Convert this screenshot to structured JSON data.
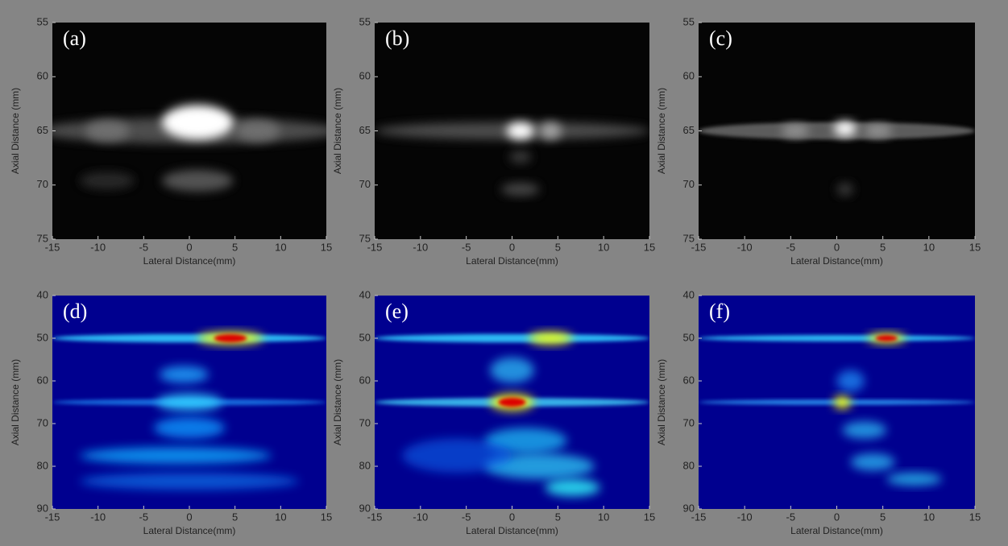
{
  "panels": [
    {
      "label": "(a)",
      "xlabel": "Lateral Distance(mm)",
      "ylabel": "Axial Distance (mm)",
      "xlim": [
        -15,
        15
      ],
      "ylim": [
        75,
        55
      ],
      "xticks": [
        -15,
        -10,
        -5,
        0,
        5,
        10,
        15
      ],
      "yticks": [
        55,
        60,
        65,
        70,
        75
      ]
    },
    {
      "label": "(b)",
      "xlabel": "Lateral Distance(mm)",
      "ylabel": "Axial Distance (mm)",
      "xlim": [
        -15,
        15
      ],
      "ylim": [
        75,
        55
      ],
      "xticks": [
        -15,
        -10,
        -5,
        0,
        5,
        10,
        15
      ],
      "yticks": [
        55,
        60,
        65,
        70,
        75
      ]
    },
    {
      "label": "(c)",
      "xlabel": "Lateral Distance(mm)",
      "ylabel": "Axial Distance (mm)",
      "xlim": [
        -15,
        15
      ],
      "ylim": [
        75,
        55
      ],
      "xticks": [
        -15,
        -10,
        -5,
        0,
        5,
        10,
        15
      ],
      "yticks": [
        55,
        60,
        65,
        70,
        75
      ]
    },
    {
      "label": "(d)",
      "xlabel": "Lateral Distance(mm)",
      "ylabel": "Axial Distance (mm)",
      "xlim": [
        -15,
        15
      ],
      "ylim": [
        90,
        40
      ],
      "xticks": [
        -15,
        -10,
        -5,
        0,
        5,
        10,
        15
      ],
      "yticks": [
        40,
        50,
        60,
        70,
        80,
        90
      ]
    },
    {
      "label": "(e)",
      "xlabel": "Lateral Distance(mm)",
      "ylabel": "Axial Distance (mm)",
      "xlim": [
        -15,
        15
      ],
      "ylim": [
        90,
        40
      ],
      "xticks": [
        -15,
        -10,
        -5,
        0,
        5,
        10,
        15
      ],
      "yticks": [
        40,
        50,
        60,
        70,
        80,
        90
      ]
    },
    {
      "label": "(f)",
      "xlabel": "Lateral Distance(mm)",
      "ylabel": "Axial Distance (mm)",
      "xlim": [
        -15,
        15
      ],
      "ylim": [
        90,
        40
      ],
      "xticks": [
        -15,
        -10,
        -5,
        0,
        5,
        10,
        15
      ],
      "yticks": [
        40,
        50,
        60,
        70,
        80,
        90
      ]
    }
  ]
}
